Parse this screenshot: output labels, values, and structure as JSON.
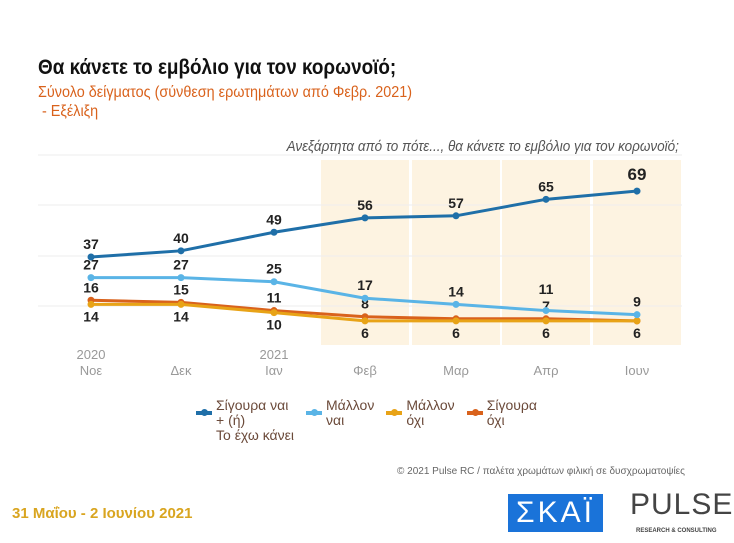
{
  "title": "Θα κάνετε το εμβόλιο για τον κορωνοϊό;",
  "subtitle_1": "Σύνολο δείγματος (σύνθεση ερωτημάτων από Φεβρ. 2021)",
  "subtitle_2": " - Εξέλιξη",
  "question": "Ανεξάρτητα από το πότε..., θα κάνετε το εμβόλιο για τον κορωνοϊό;",
  "copyright": "© 2021 Pulse RC  /  παλέτα χρωμάτων φιλική σε δυσχρωματοψίες",
  "date": "31 Μαΐου - 2 Ιουνίου 2021",
  "logo_skai": "ΣΚΑΪ",
  "logo_pulse": "PULSE",
  "logo_pulse_sub": "RESEARCH & CONSULTING",
  "chart_data": {
    "type": "line",
    "categories": [
      [
        "2020",
        "Νοε"
      ],
      [
        "",
        "Δεκ"
      ],
      [
        "2021",
        "Ιαν"
      ],
      [
        "",
        "Φεβ"
      ],
      [
        "",
        "Μαρ"
      ],
      [
        "",
        "Απρ"
      ],
      [
        "",
        "Ιουν"
      ]
    ],
    "highlight_from_index": 3,
    "legend_placement": "bottom",
    "series": [
      {
        "name": "Σίγουρα ναι + (ή) Το έχω κάνει",
        "name_lines": [
          "Σίγουρα ναι",
          "+ (ή)",
          "Το έχω κάνει"
        ],
        "color": "#1f6fa8",
        "values": [
          37,
          40,
          49,
          56,
          57,
          65,
          69
        ],
        "labels": [
          "37",
          "40",
          "49",
          "56",
          "57",
          "65",
          "69"
        ],
        "label_pos": "above"
      },
      {
        "name": "Μάλλον ναι",
        "name_lines": [
          "Μάλλον",
          "ναι"
        ],
        "color": "#5ab4e6",
        "values": [
          27,
          27,
          25,
          17,
          14,
          11,
          9
        ],
        "labels": [
          "27",
          "27",
          "25",
          "17",
          "14",
          "11",
          "9"
        ],
        "label_pos": "above"
      },
      {
        "name": "Μάλλον όχι",
        "name_lines": [
          "Μάλλον",
          "όχι"
        ],
        "color": "#e8a317",
        "values": [
          14,
          14,
          10,
          6,
          6,
          6,
          6
        ],
        "labels": [
          "14",
          "14",
          "10",
          "6",
          "6",
          "6",
          "6"
        ],
        "label_pos": "below"
      },
      {
        "name": "Σίγουρα όχι",
        "name_lines": [
          "Σίγουρα",
          "όχι"
        ],
        "color": "#d9621c",
        "values": [
          16,
          15,
          11,
          8,
          7,
          7,
          6
        ],
        "labels": [
          "16",
          "15",
          "11",
          "8",
          "",
          "7",
          ""
        ],
        "label_pos": "above"
      }
    ]
  }
}
